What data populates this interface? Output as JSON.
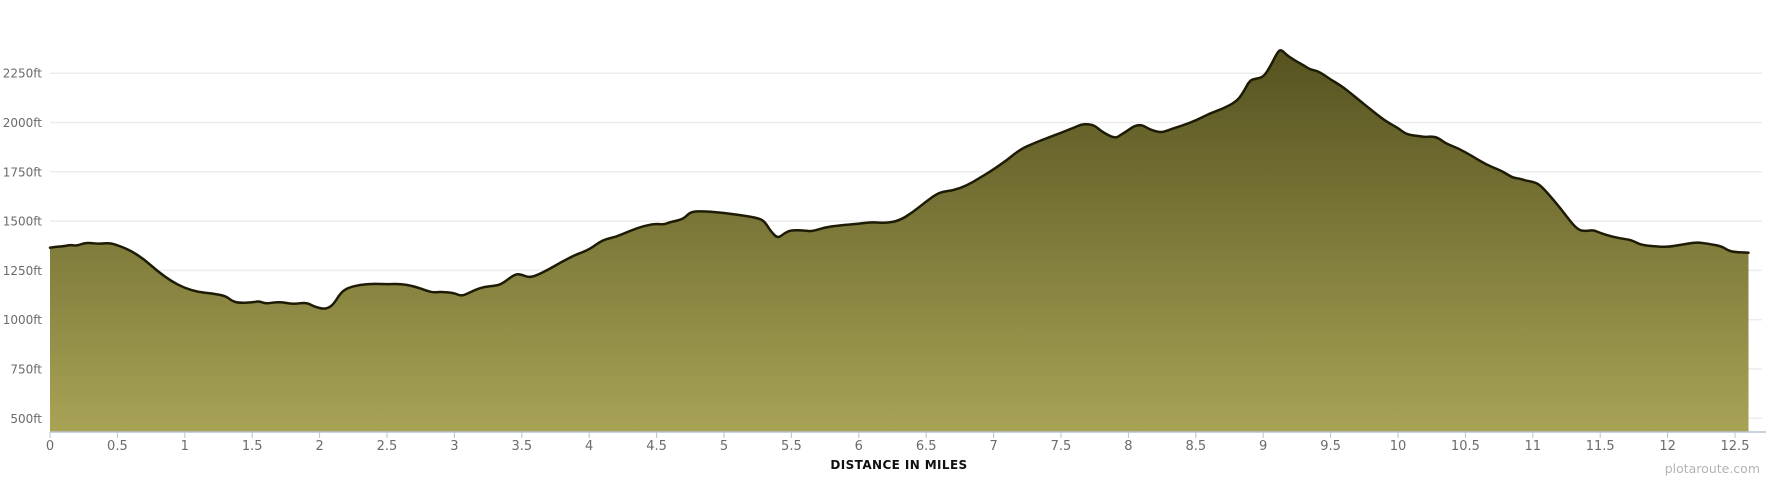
{
  "watermark": {
    "text": "plotaroute.com"
  },
  "chart_data": {
    "type": "area",
    "title": "",
    "xlabel": "DISTANCE IN MILES",
    "ylabel": "",
    "x_tick_labels": [
      "0",
      "0.5",
      "1",
      "1.5",
      "2",
      "2.5",
      "3",
      "3.5",
      "4",
      "4.5",
      "5",
      "5.5",
      "6",
      "6.5",
      "7",
      "7.5",
      "8",
      "8.5",
      "9",
      "9.5",
      "10",
      "10.5",
      "11",
      "11.5",
      "12",
      "12.5"
    ],
    "y_tick_labels": [
      "500ft",
      "750ft",
      "1000ft",
      "1250ft",
      "1500ft",
      "1750ft",
      "2000ft",
      "2250ft"
    ],
    "xlim": [
      0,
      12.73
    ],
    "ylim": [
      430,
      2620
    ],
    "grid": "horizontal",
    "legend": "none",
    "total_distance_miles": 12.6,
    "series": [
      {
        "name": "elevation-profile",
        "unit": "ft",
        "miles": [
          0,
          0.05,
          0.1,
          0.15,
          0.2,
          0.25,
          0.3,
          0.35,
          0.4,
          0.45,
          0.5,
          0.6,
          0.7,
          0.8,
          0.9,
          1.0,
          1.1,
          1.2,
          1.3,
          1.35,
          1.4,
          1.5,
          1.55,
          1.6,
          1.7,
          1.8,
          1.9,
          1.95,
          2.0,
          2.05,
          2.1,
          2.15,
          2.2,
          2.3,
          2.4,
          2.5,
          2.6,
          2.7,
          2.8,
          2.85,
          2.9,
          3.0,
          3.05,
          3.1,
          3.2,
          3.3,
          3.35,
          3.45,
          3.5,
          3.55,
          3.6,
          3.7,
          3.8,
          3.9,
          4.0,
          4.1,
          4.2,
          4.3,
          4.4,
          4.5,
          4.55,
          4.6,
          4.7,
          4.75,
          4.85,
          4.95,
          5.05,
          5.15,
          5.25,
          5.3,
          5.35,
          5.4,
          5.45,
          5.5,
          5.6,
          5.65,
          5.75,
          5.85,
          6.0,
          6.1,
          6.2,
          6.3,
          6.4,
          6.5,
          6.6,
          6.7,
          6.8,
          6.9,
          7.0,
          7.1,
          7.2,
          7.3,
          7.4,
          7.5,
          7.6,
          7.65,
          7.7,
          7.75,
          7.8,
          7.9,
          7.95,
          8.0,
          8.05,
          8.1,
          8.15,
          8.2,
          8.25,
          8.3,
          8.4,
          8.5,
          8.6,
          8.7,
          8.8,
          8.85,
          8.9,
          8.95,
          9.0,
          9.05,
          9.1,
          9.13,
          9.17,
          9.2,
          9.25,
          9.3,
          9.35,
          9.4,
          9.45,
          9.5,
          9.55,
          9.6,
          9.65,
          9.7,
          9.8,
          9.9,
          10.0,
          10.05,
          10.1,
          10.15,
          10.2,
          10.25,
          10.3,
          10.35,
          10.45,
          10.55,
          10.65,
          10.75,
          10.8,
          10.85,
          10.9,
          10.95,
          11.0,
          11.05,
          11.1,
          11.2,
          11.3,
          11.35,
          11.4,
          11.45,
          11.5,
          11.6,
          11.7,
          11.75,
          11.8,
          11.9,
          12.0,
          12.1,
          12.2,
          12.25,
          12.3,
          12.4,
          12.45,
          12.5,
          12.55,
          12.6
        ],
        "elevation_ft": [
          1365,
          1370,
          1372,
          1380,
          1375,
          1388,
          1390,
          1385,
          1387,
          1388,
          1378,
          1350,
          1305,
          1245,
          1195,
          1160,
          1140,
          1133,
          1122,
          1095,
          1085,
          1087,
          1095,
          1080,
          1092,
          1078,
          1088,
          1070,
          1058,
          1055,
          1075,
          1130,
          1160,
          1178,
          1182,
          1180,
          1182,
          1170,
          1145,
          1138,
          1142,
          1135,
          1120,
          1133,
          1165,
          1172,
          1180,
          1232,
          1228,
          1215,
          1222,
          1255,
          1295,
          1330,
          1355,
          1405,
          1420,
          1450,
          1475,
          1487,
          1482,
          1495,
          1510,
          1548,
          1550,
          1545,
          1537,
          1528,
          1515,
          1500,
          1445,
          1412,
          1440,
          1455,
          1452,
          1448,
          1468,
          1478,
          1487,
          1495,
          1490,
          1502,
          1545,
          1600,
          1648,
          1655,
          1680,
          1720,
          1762,
          1810,
          1865,
          1895,
          1922,
          1948,
          1975,
          1990,
          1992,
          1985,
          1955,
          1918,
          1940,
          1962,
          1985,
          1988,
          1968,
          1955,
          1950,
          1962,
          1985,
          2010,
          2045,
          2070,
          2105,
          2150,
          2215,
          2222,
          2230,
          2280,
          2350,
          2372,
          2345,
          2330,
          2308,
          2290,
          2268,
          2262,
          2242,
          2218,
          2198,
          2175,
          2148,
          2120,
          2065,
          2010,
          1972,
          1945,
          1935,
          1932,
          1926,
          1930,
          1922,
          1895,
          1868,
          1830,
          1788,
          1760,
          1742,
          1720,
          1716,
          1705,
          1700,
          1685,
          1650,
          1570,
          1480,
          1452,
          1450,
          1455,
          1440,
          1418,
          1408,
          1398,
          1380,
          1372,
          1368,
          1380,
          1392,
          1390,
          1385,
          1373,
          1350,
          1343,
          1342,
          1340
        ]
      }
    ],
    "colors": {
      "fill_top": "#555220",
      "fill_bottom": "#A8A355",
      "line": "#1E1B05",
      "gridline": "#ECECEC",
      "axis_line": "#BBC3D2",
      "tick_mark": "#BBC3D2",
      "tick_label": "#6B6B6B",
      "axis_title": "#101010",
      "watermark": "#B4B4B4",
      "background": "#FFFFFF"
    }
  }
}
